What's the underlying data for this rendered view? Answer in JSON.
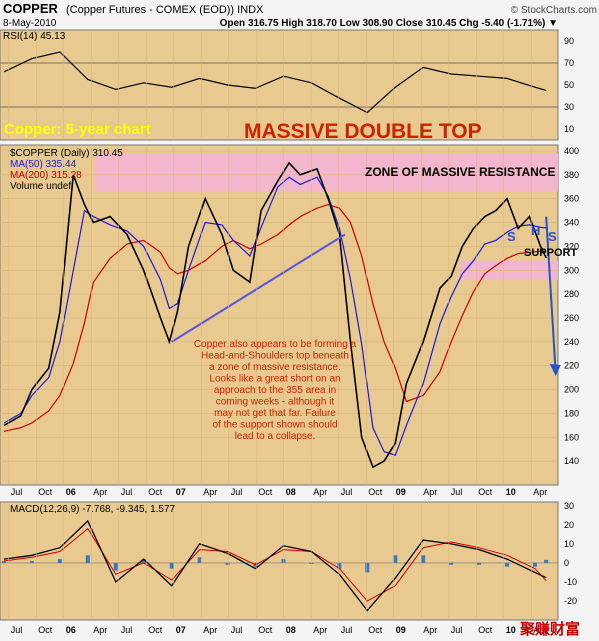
{
  "header": {
    "symbol": "COPPER",
    "description": "(Copper Futures - COMEX (EOD))  INDX",
    "source": "© StockCharts.com",
    "date": "8-May-2010",
    "ohlc": "Open 316.75  High 318.70  Low 308.90  Close 310.45  Chg -5.40 (-1.71%) ▼"
  },
  "indicators": {
    "rsi_label": "RSI(14) 45.13",
    "price_symbol": "$COPPER (Daily) 310.45",
    "ma50_label": "MA(50) 335.44",
    "ma200_label": "MA(200) 315.28",
    "volume_label": "Volume undef",
    "macd_label": "MACD(12,26,9) -7.768, -9.345, 1.577"
  },
  "annotations": {
    "subtitle": "Copper: 5-year chart",
    "title": "MASSIVE DOUBLE TOP",
    "resistance": "ZONE OF MASSIVE RESISTANCE",
    "support": "SUPPORT",
    "s_left": "S",
    "h": "H",
    "s_right": "S",
    "commentary": [
      "Copper also appears to be forming a",
      "Head-and-Shoulders top beneath",
      "a zone of massive resistance.",
      "Looks like a great short on an",
      "approach to the 355 area in",
      "coming weeks - although it",
      "may not get that far. Failure",
      "of the support shown should",
      "lead to a collapse."
    ]
  },
  "watermark": "聚赚财富",
  "colors": {
    "panel_bg": "#e8c98f",
    "price": "#000000",
    "ma50": "#1a1adb",
    "ma200": "#cc0000",
    "zone": "#f4b4d8",
    "annotation_red": "#cc2200",
    "trendline": "#5555dd",
    "forecast_arrow": "#2255cc",
    "subtitle": "#ffff00",
    "macd_hist": "#3a78c8"
  },
  "chart_data": [
    {
      "type": "line",
      "title": "RSI(14) 45.13",
      "y_ticks": [
        10,
        30,
        50,
        70,
        90
      ],
      "ylim": [
        0,
        100
      ],
      "reference_lines": [
        30,
        70
      ],
      "x_ticks": [
        "Jul",
        "Oct",
        "06",
        "Apr",
        "Jul",
        "Oct",
        "07",
        "Apr",
        "Jul",
        "Oct",
        "08",
        "Apr",
        "Jul",
        "Oct",
        "09",
        "Apr",
        "Jul",
        "Oct",
        "10",
        "Apr"
      ],
      "x": [
        0,
        0.25,
        0.5,
        0.75,
        1.0,
        1.25,
        1.5,
        1.75,
        2.0,
        2.25,
        2.5,
        2.75,
        3.0,
        3.25,
        3.5,
        3.75,
        4.0,
        4.25,
        4.5,
        4.75,
        4.85
      ],
      "series": [
        {
          "name": "RSI(14)",
          "values": [
            62,
            74,
            80,
            55,
            46,
            52,
            48,
            56,
            50,
            47,
            58,
            52,
            38,
            25,
            48,
            66,
            60,
            58,
            56,
            48,
            45.13
          ]
        }
      ]
    },
    {
      "type": "line",
      "title": "$COPPER (Daily) 310.45",
      "x_ticks": [
        "Jul",
        "Oct",
        "06",
        "Apr",
        "Jul",
        "Oct",
        "07",
        "Apr",
        "Jul",
        "Oct",
        "08",
        "Apr",
        "Jul",
        "Oct",
        "09",
        "Apr",
        "Jul",
        "Oct",
        "10",
        "Apr"
      ],
      "y_ticks": [
        140,
        160,
        180,
        200,
        220,
        240,
        260,
        280,
        300,
        320,
        340,
        360,
        380,
        400
      ],
      "ylim": [
        120,
        405
      ],
      "x": [
        0,
        0.15,
        0.25,
        0.4,
        0.5,
        0.62,
        0.72,
        0.8,
        0.95,
        1.1,
        1.25,
        1.4,
        1.48,
        1.55,
        1.65,
        1.8,
        1.95,
        2.05,
        2.2,
        2.3,
        2.45,
        2.55,
        2.65,
        2.8,
        2.9,
        3.0,
        3.1,
        3.2,
        3.3,
        3.4,
        3.5,
        3.6,
        3.75,
        3.9,
        4.0,
        4.1,
        4.2,
        4.3,
        4.4,
        4.5,
        4.6,
        4.7,
        4.8,
        4.85
      ],
      "series": [
        {
          "name": "MA(50) 335.44",
          "values": [
            172,
            180,
            195,
            210,
            240,
            300,
            350,
            345,
            338,
            333,
            320,
            292,
            268,
            272,
            300,
            340,
            338,
            325,
            312,
            336,
            370,
            378,
            372,
            378,
            362,
            335,
            292,
            238,
            168,
            148,
            145,
            170,
            205,
            255,
            278,
            297,
            308,
            322,
            325,
            332,
            337,
            338,
            336,
            335.44
          ]
        },
        {
          "name": "MA(200) 315.28",
          "values": [
            165,
            168,
            172,
            182,
            195,
            222,
            256,
            290,
            310,
            322,
            325,
            315,
            302,
            297,
            300,
            308,
            320,
            325,
            318,
            322,
            330,
            338,
            345,
            352,
            355,
            352,
            340,
            312,
            272,
            240,
            218,
            190,
            195,
            215,
            240,
            262,
            282,
            297,
            304,
            310,
            314,
            315,
            316,
            315.28
          ]
        },
        {
          "name": "$COPPER",
          "values": [
            170,
            178,
            200,
            218,
            265,
            380,
            355,
            340,
            345,
            330,
            300,
            260,
            240,
            265,
            320,
            360,
            330,
            300,
            290,
            350,
            375,
            390,
            380,
            385,
            360,
            330,
            240,
            160,
            135,
            140,
            155,
            205,
            240,
            285,
            295,
            320,
            335,
            345,
            350,
            360,
            335,
            345,
            320,
            310.45
          ]
        }
      ]
    },
    {
      "type": "line",
      "title": "MACD(12,26,9) -7.768, -9.345, 1.577",
      "y_ticks": [
        -20,
        -10,
        0,
        10,
        20,
        30
      ],
      "ylim": [
        -30,
        32
      ],
      "x_ticks": [
        "Jul",
        "Oct",
        "06",
        "Apr",
        "Jul",
        "Oct",
        "07",
        "Apr",
        "Jul",
        "Oct",
        "08",
        "Apr",
        "Jul",
        "Oct",
        "09",
        "Apr",
        "Jul",
        "Oct",
        "10",
        "Apr"
      ],
      "x": [
        0,
        0.25,
        0.5,
        0.75,
        1.0,
        1.25,
        1.5,
        1.75,
        2.0,
        2.25,
        2.5,
        2.75,
        3.0,
        3.25,
        3.5,
        3.75,
        4.0,
        4.25,
        4.5,
        4.75,
        4.85
      ],
      "series": [
        {
          "name": "MACD",
          "values": [
            2,
            4,
            8,
            22,
            -10,
            2,
            -12,
            10,
            5,
            -3,
            9,
            6,
            -6,
            -25,
            -8,
            12,
            10,
            7,
            2,
            -5,
            -7.768
          ]
        },
        {
          "name": "Signal",
          "values": [
            1,
            3,
            6,
            18,
            -6,
            0,
            -9,
            7,
            6,
            -1,
            7,
            6,
            -3,
            -20,
            -12,
            8,
            11,
            8,
            4,
            -3,
            -9.345
          ]
        },
        {
          "name": "Histogram",
          "values": [
            1,
            1,
            2,
            4,
            -4,
            2,
            -3,
            3,
            -1,
            -2,
            2,
            0,
            -3,
            -5,
            4,
            4,
            -1,
            -1,
            -2,
            -2,
            1.577
          ]
        }
      ]
    }
  ]
}
